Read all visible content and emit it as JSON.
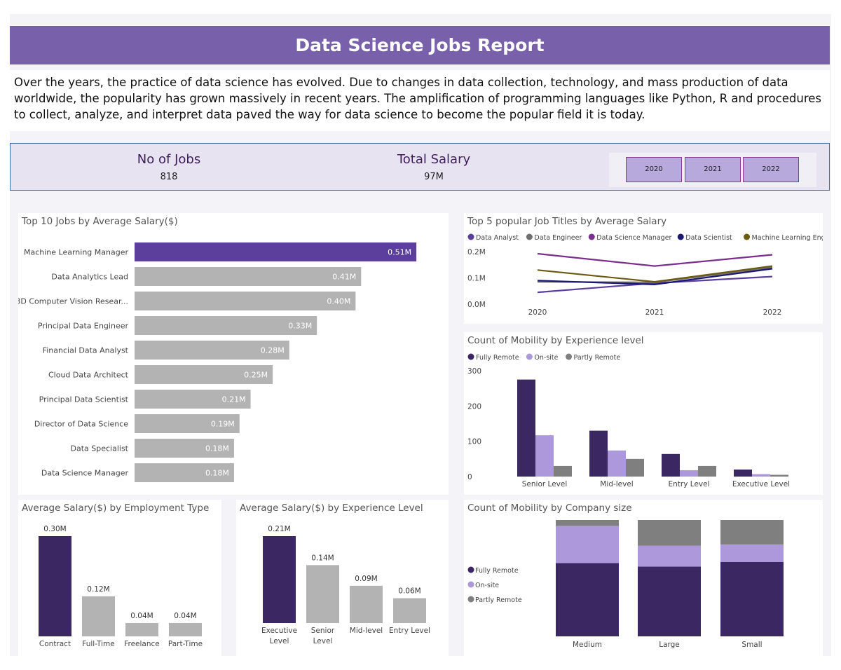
{
  "header": {
    "title": "Data Science Jobs Report"
  },
  "intro": {
    "text": "Over the years, the practice of data science has evolved. Due to changes in data collection, technology, and mass production of data worldwide, the popularity has grown massively  in recent years. The amplification of programming languages like Python, R and procedures to collect, analyze, and interpret data paved the way for data science to become the popular field it is today."
  },
  "kpi": {
    "jobs_label": "No of Jobs",
    "jobs_value": "818",
    "salary_label": "Total Salary",
    "salary_value": "97M"
  },
  "year_filter": [
    "2020",
    "2021",
    "2022"
  ],
  "colors": {
    "header": "#7861aa",
    "dark_purple": "#3b2862",
    "highlight": "#5c3f9c",
    "lavender": "#ac98db",
    "gray": "#7f7f7f",
    "bar_gray": "#b3b3b3"
  },
  "chart_data": [
    {
      "type": "bar",
      "orientation": "horizontal",
      "title": "Top 10 Jobs by Average Salary($)",
      "categories": [
        "Machine Learning Manager",
        "Data Analytics Lead",
        "3D Computer Vision Resear...",
        "Principal Data Engineer",
        "Financial Data Analyst",
        "Cloud Data Architect",
        "Principal Data Scientist",
        "Director of Data Science",
        "Data Specialist",
        "Data Science Manager"
      ],
      "values": [
        0.51,
        0.41,
        0.4,
        0.33,
        0.28,
        0.25,
        0.21,
        0.19,
        0.18,
        0.18
      ],
      "value_labels": [
        "0.51M",
        "0.41M",
        "0.40M",
        "0.33M",
        "0.28M",
        "0.25M",
        "0.21M",
        "0.19M",
        "0.18M",
        "0.18M"
      ],
      "xlim": [
        0,
        0.52
      ],
      "highlight_index": 0
    },
    {
      "type": "line",
      "title": "Top 5 popular Job Titles by Average Salary",
      "x": [
        "2020",
        "2021",
        "2022"
      ],
      "y_ticks": [
        "0.2M",
        "0.1M",
        "0.0M"
      ],
      "ylim": [
        0,
        0.2
      ],
      "legend": "top",
      "series": [
        {
          "name": "Data Analyst",
          "color": "#5b3f9e",
          "values": [
            0.045,
            0.08,
            0.105
          ]
        },
        {
          "name": "Data Engineer",
          "color": "#6f6f6f",
          "values": [
            0.085,
            0.083,
            0.14
          ]
        },
        {
          "name": "Data Science Manager",
          "color": "#7a2f8e",
          "values": [
            0.192,
            0.145,
            0.188
          ]
        },
        {
          "name": "Data Scientist",
          "color": "#1b1770",
          "values": [
            0.09,
            0.075,
            0.135
          ]
        },
        {
          "name": "Machine Learning Engineer",
          "color": "#6b5a10",
          "values": [
            0.13,
            0.085,
            0.145
          ]
        }
      ]
    },
    {
      "type": "bar",
      "title": "Count of Mobility by Experience level",
      "categories": [
        "Senior Level",
        "Mid-level",
        "Entry Level",
        "Executive Level"
      ],
      "y_ticks": [
        "300",
        "200",
        "100",
        "0"
      ],
      "ylim": [
        0,
        300
      ],
      "legend": "top",
      "series": [
        {
          "name": "Fully Remote",
          "color": "#3b2862",
          "values": [
            275,
            130,
            64,
            20
          ]
        },
        {
          "name": "On-site",
          "color": "#ac98db",
          "values": [
            117,
            74,
            18,
            7
          ]
        },
        {
          "name": "Partly Remote",
          "color": "#7f7f7f",
          "values": [
            30,
            50,
            30,
            5
          ]
        }
      ]
    },
    {
      "type": "bar",
      "title": "Average Salary($) by Employment Type",
      "categories": [
        "Contract",
        "Full-Time",
        "Freelance",
        "Part-Time"
      ],
      "values": [
        0.3,
        0.12,
        0.04,
        0.04
      ],
      "value_labels": [
        "0.30M",
        "0.12M",
        "0.04M",
        "0.04M"
      ],
      "ylim": [
        0,
        0.3
      ],
      "highlight_index": 0
    },
    {
      "type": "bar",
      "title": "Average Salary($) by Experience Level",
      "categories": [
        [
          "Executive",
          "Level"
        ],
        [
          "Senior",
          "Level"
        ],
        [
          "Mid-level"
        ],
        [
          "Entry Level"
        ]
      ],
      "values": [
        0.21,
        0.14,
        0.09,
        0.06
      ],
      "value_labels": [
        "0.21M",
        "0.14M",
        "0.09M",
        "0.06M"
      ],
      "ylim": [
        0,
        0.21
      ],
      "highlight_index": 0
    },
    {
      "type": "bar",
      "stacked": "100%",
      "title": "Count of Mobility by Company size",
      "categories": [
        "Medium",
        "Large",
        "Small"
      ],
      "legend": "left",
      "series": [
        {
          "name": "Fully Remote",
          "color": "#3b2862",
          "values": [
            63,
            60,
            64
          ]
        },
        {
          "name": "On-site",
          "color": "#ac98db",
          "values": [
            32,
            18,
            15
          ]
        },
        {
          "name": "Partly Remote",
          "color": "#7f7f7f",
          "values": [
            5,
            22,
            21
          ]
        }
      ]
    }
  ]
}
